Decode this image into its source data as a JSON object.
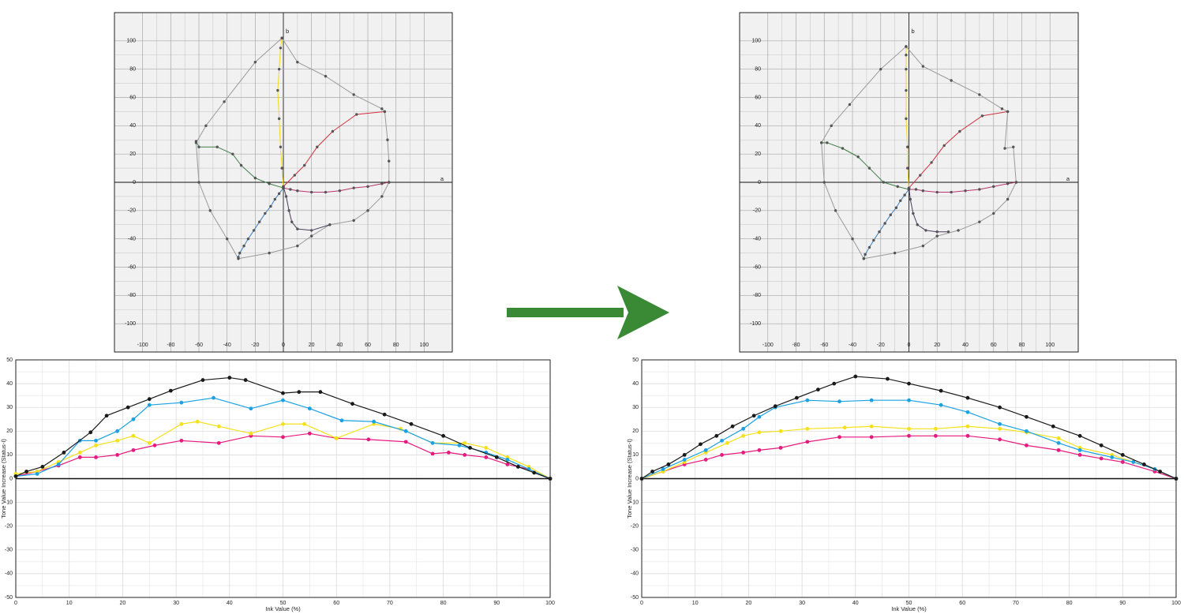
{
  "chart_data": [
    {
      "type": "line",
      "xlabel": "a",
      "ylabel": "b",
      "xlim": [
        -120,
        120
      ],
      "ylim": [
        -120,
        120
      ],
      "xticks": [
        -100,
        -80,
        -60,
        -40,
        -20,
        0,
        20,
        40,
        60,
        80,
        100
      ],
      "yticks": [
        -100,
        -80,
        -60,
        -40,
        -20,
        0,
        20,
        40,
        60,
        80,
        100
      ],
      "grid": true,
      "marker_color": "#555555",
      "series": [
        {
          "color": "#9a9a9a",
          "x": [
            -1,
            10,
            30,
            50,
            70,
            72,
            74,
            75,
            75,
            70,
            60,
            50,
            33,
            20,
            10,
            -10,
            -32,
            -40,
            -52,
            -60,
            -62,
            -55,
            -42,
            -20,
            -1
          ],
          "values": [
            102,
            85,
            75,
            62,
            52,
            50,
            30,
            15,
            0,
            -10,
            -20,
            -27,
            -30,
            -38,
            -45,
            -50,
            -54,
            -40,
            -20,
            0,
            28,
            40,
            57,
            85,
            102
          ]
        },
        {
          "color": "#3a7fc0",
          "x": [
            0,
            -3,
            -6,
            -9,
            -13,
            -17,
            -21,
            -25,
            -28,
            -31,
            -32
          ],
          "values": [
            -4,
            -8,
            -12,
            -17,
            -22,
            -28,
            -34,
            -40,
            -45,
            -50,
            -53
          ]
        },
        {
          "color": "#b8336a",
          "x": [
            0,
            5,
            10,
            20,
            30,
            40,
            50,
            60,
            70,
            75
          ],
          "values": [
            -4,
            -5,
            -6,
            -7,
            -7,
            -6,
            -4,
            -3,
            -1,
            0
          ]
        },
        {
          "color": "#f0d820",
          "x": [
            0,
            -1,
            -2,
            -3,
            -4,
            -3,
            -2,
            -1
          ],
          "values": [
            -3,
            10,
            25,
            45,
            65,
            80,
            95,
            102
          ]
        },
        {
          "color": "#d0303c",
          "x": [
            0,
            8,
            15,
            24,
            35,
            52,
            72
          ],
          "values": [
            -3,
            5,
            12,
            25,
            36,
            48,
            50
          ]
        },
        {
          "color": "#3f7f4a",
          "x": [
            0,
            -10,
            -20,
            -30,
            -36,
            -47,
            -60,
            -62
          ],
          "values": [
            -4,
            -1,
            3,
            12,
            20,
            25,
            25,
            29
          ]
        },
        {
          "color": "#4a3a5a",
          "x": [
            0,
            2,
            4,
            6,
            10,
            20,
            33
          ],
          "values": [
            -3,
            -10,
            -20,
            -28,
            -33,
            -34,
            -30
          ]
        }
      ]
    },
    {
      "type": "line",
      "xlabel": "a",
      "ylabel": "b",
      "xlim": [
        -120,
        120
      ],
      "ylim": [
        -120,
        120
      ],
      "xticks": [
        -100,
        -80,
        -60,
        -40,
        -20,
        0,
        20,
        40,
        60,
        80,
        100
      ],
      "yticks": [
        -100,
        -80,
        -60,
        -40,
        -20,
        0,
        20,
        40,
        60,
        80,
        100
      ],
      "grid": true,
      "marker_color": "#555555",
      "series": [
        {
          "color": "#9a9a9a",
          "x": [
            -2,
            10,
            30,
            50,
            66,
            70,
            68,
            74,
            76,
            70,
            60,
            50,
            35,
            20,
            10,
            -10,
            -32,
            -40,
            -52,
            -60,
            -62,
            -55,
            -42,
            -20,
            -2
          ],
          "values": [
            96,
            82,
            72,
            62,
            52,
            50,
            24,
            25,
            0,
            -12,
            -22,
            -28,
            -34,
            -38,
            -45,
            -50,
            -54,
            -40,
            -20,
            0,
            28,
            40,
            55,
            80,
            96
          ]
        },
        {
          "color": "#3a7fc0",
          "x": [
            0,
            -3,
            -6,
            -9,
            -13,
            -17,
            -21,
            -25,
            -28,
            -31,
            -32
          ],
          "values": [
            -5,
            -9,
            -13,
            -18,
            -23,
            -29,
            -35,
            -41,
            -46,
            -51,
            -54
          ]
        },
        {
          "color": "#b8336a",
          "x": [
            0,
            5,
            10,
            20,
            30,
            40,
            50,
            60,
            70,
            76
          ],
          "values": [
            -5,
            -5,
            -6,
            -7,
            -7,
            -6,
            -5,
            -3,
            -1,
            0
          ]
        },
        {
          "color": "#f0d820",
          "x": [
            0,
            -1,
            -1,
            -2,
            -2,
            -2,
            -2,
            -2
          ],
          "values": [
            -4,
            10,
            25,
            45,
            65,
            80,
            90,
            96
          ]
        },
        {
          "color": "#d0303c",
          "x": [
            0,
            8,
            16,
            25,
            36,
            52,
            70
          ],
          "values": [
            -4,
            5,
            14,
            26,
            36,
            47,
            50
          ]
        },
        {
          "color": "#3f7f4a",
          "x": [
            0,
            -8,
            -18,
            -28,
            -36,
            -47,
            -58,
            -62
          ],
          "values": [
            -5,
            -3,
            0,
            10,
            18,
            24,
            28,
            28
          ]
        },
        {
          "color": "#4a3a5a",
          "x": [
            0,
            1,
            3,
            6,
            12,
            20,
            28
          ],
          "values": [
            -4,
            -12,
            -22,
            -30,
            -34,
            -35,
            -35
          ]
        }
      ]
    },
    {
      "type": "line",
      "xlabel": "Ink Value (%)",
      "ylabel": "Tone Value Increase (Status-I)",
      "xlim": [
        0,
        100
      ],
      "ylim": [
        -50,
        50
      ],
      "xticks": [
        0,
        10,
        20,
        30,
        40,
        50,
        60,
        70,
        80,
        90,
        100
      ],
      "yticks": [
        -50,
        -40,
        -30,
        -20,
        -10,
        0,
        10,
        20,
        30,
        40,
        50
      ],
      "grid": true,
      "series": [
        {
          "color": "#e6197e",
          "x": [
            0,
            4,
            8,
            12,
            15,
            19,
            22,
            26,
            31,
            38,
            44,
            50,
            55,
            60,
            66,
            73,
            78,
            81,
            84,
            88,
            92,
            96,
            100
          ],
          "values": [
            1,
            3,
            5.5,
            9,
            9,
            10,
            12,
            14,
            16,
            15,
            18,
            17.5,
            19,
            17,
            16.5,
            15.5,
            10.5,
            11,
            10,
            9,
            6,
            4,
            0
          ]
        },
        {
          "color": "#f5e11a",
          "x": [
            0,
            4,
            8,
            12,
            15,
            19,
            22,
            25,
            31,
            34,
            38,
            44,
            50,
            54,
            60,
            67,
            72,
            78,
            84,
            88,
            92,
            96,
            100
          ],
          "values": [
            2,
            3,
            7,
            11,
            14,
            16,
            18,
            15,
            23,
            24,
            22,
            19,
            23,
            23,
            17,
            23,
            21,
            15,
            15,
            13,
            9,
            5,
            0
          ]
        },
        {
          "color": "#1ba1e2",
          "x": [
            0,
            4,
            8,
            12,
            15,
            19,
            22,
            25,
            31,
            37,
            44,
            50,
            55,
            61,
            67,
            73,
            78,
            83,
            88,
            92,
            96,
            100
          ],
          "values": [
            1,
            2,
            6,
            16,
            16,
            20,
            25,
            31,
            32,
            34,
            29.5,
            33,
            29.5,
            24.5,
            24,
            20,
            15,
            14,
            11,
            8,
            4,
            0
          ]
        },
        {
          "color": "#1a1a1a",
          "x": [
            0,
            2,
            5,
            9,
            14,
            17,
            21,
            25,
            29,
            35,
            40,
            43,
            50,
            53,
            57,
            63,
            69,
            74,
            80,
            85,
            90,
            94,
            97,
            100
          ],
          "values": [
            1,
            3,
            5,
            11,
            19.5,
            26.5,
            30,
            33.5,
            37,
            41.5,
            42.5,
            41.5,
            36,
            36.5,
            36.5,
            31.5,
            27,
            23,
            18,
            13,
            9,
            5,
            2.5,
            0
          ]
        }
      ]
    },
    {
      "type": "line",
      "xlabel": "Ink Value (%)",
      "ylabel": "Tone Value Increase (Status-I)",
      "xlim": [
        0,
        100
      ],
      "ylim": [
        -50,
        50
      ],
      "xticks": [
        0,
        10,
        20,
        30,
        40,
        50,
        60,
        70,
        80,
        90,
        100
      ],
      "yticks": [
        -50,
        -40,
        -30,
        -20,
        -10,
        0,
        10,
        20,
        30,
        40,
        50
      ],
      "grid": true,
      "series": [
        {
          "color": "#e6197e",
          "x": [
            0,
            4,
            8,
            12,
            15,
            19,
            22,
            26,
            31,
            37,
            43,
            50,
            55,
            61,
            67,
            72,
            78,
            82,
            86,
            90,
            96,
            100
          ],
          "values": [
            0,
            3,
            6,
            8,
            10,
            11,
            12,
            13,
            15.5,
            17.5,
            17.5,
            18,
            18,
            18,
            16.5,
            14,
            12,
            10,
            8.5,
            7,
            3,
            0
          ]
        },
        {
          "color": "#f5e11a",
          "x": [
            0,
            4,
            8,
            12,
            16,
            19,
            22,
            26,
            31,
            38,
            43,
            50,
            55,
            61,
            67,
            72,
            78,
            82,
            88,
            92,
            96,
            100
          ],
          "values": [
            0,
            3,
            7,
            11,
            15,
            18,
            19.5,
            20,
            21,
            21.5,
            22,
            21,
            21,
            22,
            21,
            19.5,
            17,
            13,
            10,
            7,
            4,
            0
          ]
        },
        {
          "color": "#1ba1e2",
          "x": [
            0,
            4,
            8,
            12,
            15,
            19,
            22,
            25,
            31,
            37,
            43,
            50,
            56,
            61,
            67,
            72,
            78,
            82,
            88,
            92,
            96,
            100
          ],
          "values": [
            0,
            4,
            8,
            12,
            16,
            21,
            26,
            30,
            33,
            32.5,
            33,
            33,
            31,
            28,
            23,
            20,
            15,
            12,
            9,
            7,
            4,
            0
          ]
        },
        {
          "color": "#1a1a1a",
          "x": [
            0,
            2,
            5,
            8,
            11,
            14,
            17,
            21,
            25,
            29,
            33,
            36,
            40,
            46,
            50,
            56,
            61,
            67,
            72,
            77,
            82,
            86,
            90,
            94,
            97,
            100
          ],
          "values": [
            0,
            3,
            6,
            10,
            14.5,
            18,
            22,
            26.5,
            30.5,
            34,
            37.5,
            40,
            43,
            42,
            40,
            37,
            34,
            30,
            26,
            22,
            18,
            14,
            10,
            6,
            3,
            0
          ]
        }
      ]
    }
  ]
}
